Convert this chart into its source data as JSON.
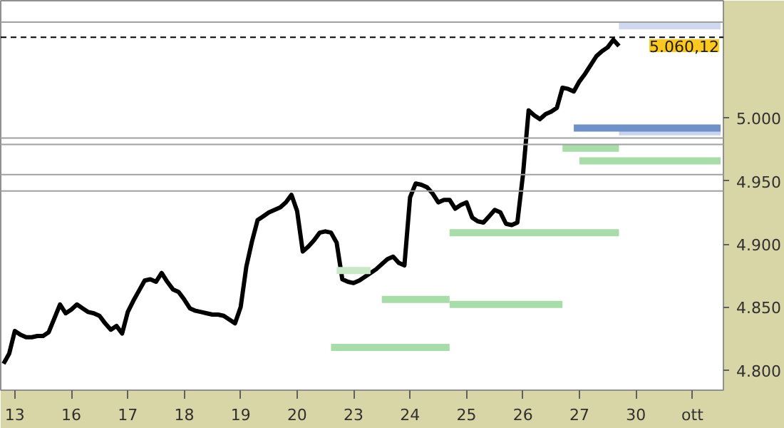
{
  "chart_data": {
    "type": "line",
    "grid": false,
    "marker": "none",
    "line_style": "solid",
    "categories": [
      null,
      null,
      "13",
      null,
      null,
      null,
      null,
      null,
      null,
      null,
      null,
      null,
      "16",
      null,
      null,
      null,
      null,
      null,
      null,
      null,
      null,
      null,
      "17",
      null,
      null,
      null,
      null,
      null,
      null,
      null,
      null,
      null,
      "18",
      null,
      null,
      null,
      null,
      null,
      null,
      null,
      null,
      null,
      "19",
      null,
      null,
      null,
      null,
      null,
      null,
      null,
      null,
      null,
      "20",
      null,
      null,
      null,
      null,
      null,
      null,
      null,
      null,
      null,
      "23",
      null,
      null,
      null,
      null,
      null,
      null,
      null,
      null,
      null,
      "24",
      null,
      null,
      null,
      null,
      null,
      null,
      null,
      null,
      null,
      "25",
      null,
      null,
      null,
      null,
      null,
      null,
      null,
      null,
      null,
      "26",
      null,
      null,
      null,
      null,
      null,
      null,
      null,
      null,
      null,
      "27",
      null,
      null,
      null,
      null,
      null,
      null,
      null,
      null,
      null,
      "30",
      null,
      null,
      null,
      null,
      null,
      null,
      null,
      null,
      null,
      "ott",
      null,
      null,
      null,
      null,
      null
    ],
    "ylim": [
      4784,
      5093
    ],
    "yticks": [
      {
        "value": 4800,
        "label": "4.800"
      },
      {
        "value": 4850,
        "label": "4.850"
      },
      {
        "value": 4900,
        "label": "4.900"
      },
      {
        "value": 4950,
        "label": "4.950"
      },
      {
        "value": 5000,
        "label": "5.000"
      }
    ],
    "series": [
      {
        "color": "#000000",
        "values": [
          4805,
          4813,
          4831,
          4828,
          4826,
          4826,
          4827,
          4827,
          4830,
          4841,
          4852,
          4845,
          4848,
          4852,
          4849,
          4846,
          4845,
          4843,
          4837,
          4832,
          4835,
          4829,
          4846,
          4855,
          4863,
          4871,
          4872,
          4870,
          4877,
          4870,
          4864,
          4862,
          4856,
          4849,
          4847,
          4846,
          4845,
          4844,
          4844,
          4843,
          4840,
          4837,
          4850,
          4882,
          4902,
          4919,
          4922,
          4925,
          4927,
          4929,
          4933,
          4939,
          4926,
          4894,
          4898,
          4903,
          4909,
          4910,
          4909,
          4901,
          4872,
          4870,
          4869,
          4871,
          4874,
          4877,
          4880,
          4884,
          4888,
          4890,
          4885,
          4883,
          4937,
          4948,
          4947,
          4945,
          4940,
          4933,
          4935,
          4935,
          4928,
          4931,
          4933,
          4921,
          4918,
          4917,
          4922,
          4927,
          4925,
          4916,
          4915,
          4917,
          4955,
          5006,
          5002,
          4999,
          5003,
          5005,
          5008,
          5024,
          5023,
          5021,
          5029,
          5035,
          5042,
          5049,
          5053,
          5056,
          5062,
          5057,
          null,
          null,
          null,
          null,
          null,
          null,
          null,
          null,
          null,
          null,
          null,
          null,
          null,
          null,
          null,
          null,
          null,
          null
        ]
      },
      {
        "color": "#a8dca8",
        "values": [
          null,
          null,
          null,
          null,
          null,
          null,
          null,
          null,
          null,
          null,
          null,
          null,
          null,
          null,
          null,
          null,
          null,
          null,
          null,
          null,
          null,
          null,
          null,
          null,
          null,
          null,
          null,
          null,
          null,
          null,
          null,
          null,
          null,
          null,
          null,
          null,
          null,
          null,
          null,
          null,
          null,
          null,
          null,
          null,
          null,
          null,
          null,
          null,
          null,
          null,
          null,
          null,
          null,
          null,
          null,
          null,
          null,
          null,
          4818,
          4818,
          4818,
          4818,
          4818,
          4818,
          4818,
          4818,
          4818,
          4818,
          4818,
          4818,
          4818,
          4818,
          4818,
          4818,
          4818,
          4818,
          4818,
          4818,
          4818,
          4818,
          null,
          null,
          null,
          null,
          null,
          null,
          null,
          null,
          null,
          null,
          null,
          null,
          null,
          null,
          null,
          null,
          null,
          null,
          null,
          null,
          null,
          null,
          null,
          null,
          null,
          null,
          null,
          null,
          null,
          null,
          null,
          null,
          null,
          null,
          null,
          null,
          null,
          null,
          null,
          null,
          null,
          null,
          null,
          null,
          null,
          null,
          null,
          null
        ]
      },
      {
        "color": "#a8dca8",
        "values": [
          null,
          null,
          null,
          null,
          null,
          null,
          null,
          null,
          null,
          null,
          null,
          null,
          null,
          null,
          null,
          null,
          null,
          null,
          null,
          null,
          null,
          null,
          null,
          null,
          null,
          null,
          null,
          null,
          null,
          null,
          null,
          null,
          null,
          null,
          null,
          null,
          null,
          null,
          null,
          null,
          null,
          null,
          null,
          null,
          null,
          null,
          null,
          null,
          null,
          null,
          null,
          null,
          null,
          null,
          null,
          null,
          null,
          null,
          null,
          null,
          null,
          null,
          null,
          null,
          null,
          null,
          null,
          4856,
          4856,
          4856,
          4856,
          4856,
          4856,
          4856,
          4856,
          4856,
          4856,
          4856,
          4856,
          4856,
          null,
          null,
          null,
          null,
          null,
          null,
          null,
          null,
          null,
          null,
          null,
          null,
          null,
          null,
          null,
          null,
          null,
          null,
          null,
          null,
          null,
          null,
          null,
          null,
          null,
          null,
          null,
          null,
          null,
          null,
          null,
          null,
          null,
          null,
          null,
          null,
          null,
          null,
          null,
          null,
          null,
          null,
          null,
          null,
          null,
          null,
          null,
          null
        ]
      },
      {
        "color": "#a8dca8",
        "values": [
          null,
          null,
          null,
          null,
          null,
          null,
          null,
          null,
          null,
          null,
          null,
          null,
          null,
          null,
          null,
          null,
          null,
          null,
          null,
          null,
          null,
          null,
          null,
          null,
          null,
          null,
          null,
          null,
          null,
          null,
          null,
          null,
          null,
          null,
          null,
          null,
          null,
          null,
          null,
          null,
          null,
          null,
          null,
          null,
          null,
          null,
          null,
          null,
          null,
          null,
          null,
          null,
          null,
          null,
          null,
          null,
          null,
          null,
          null,
          null,
          null,
          null,
          null,
          null,
          null,
          null,
          null,
          null,
          null,
          null,
          null,
          null,
          null,
          null,
          null,
          null,
          null,
          null,
          null,
          4852,
          4852,
          4852,
          4852,
          4852,
          4852,
          4852,
          4852,
          4852,
          4852,
          4852,
          4852,
          4852,
          4852,
          4852,
          4852,
          4852,
          4852,
          4852,
          4852,
          4852,
          null,
          null,
          null,
          null,
          null,
          null,
          null,
          null,
          null,
          null,
          null,
          null,
          null,
          null,
          null,
          null,
          null,
          null,
          null,
          null,
          null,
          null,
          null,
          null,
          null,
          null,
          null,
          null
        ]
      },
      {
        "color": "#a8dca8",
        "values": [
          null,
          null,
          null,
          null,
          null,
          null,
          null,
          null,
          null,
          null,
          null,
          null,
          null,
          null,
          null,
          null,
          null,
          null,
          null,
          null,
          null,
          null,
          null,
          null,
          null,
          null,
          null,
          null,
          null,
          null,
          null,
          null,
          null,
          null,
          null,
          null,
          null,
          null,
          null,
          null,
          null,
          null,
          null,
          null,
          null,
          null,
          null,
          null,
          null,
          null,
          null,
          null,
          null,
          null,
          null,
          null,
          null,
          null,
          null,
          null,
          null,
          null,
          null,
          null,
          null,
          null,
          null,
          null,
          null,
          null,
          null,
          null,
          null,
          null,
          null,
          null,
          null,
          null,
          null,
          4909,
          4909,
          4909,
          4909,
          4909,
          4909,
          4909,
          4909,
          4909,
          4909,
          4909,
          4909,
          4909,
          4909,
          4909,
          4909,
          4909,
          4909,
          4909,
          4909,
          4909,
          4909,
          4909,
          4909,
          4909,
          4909,
          4909,
          4909,
          4909,
          4909,
          4909,
          null,
          null,
          null,
          null,
          null,
          null,
          null,
          null,
          null,
          null,
          null,
          null,
          null,
          null,
          null,
          null,
          null,
          null
        ]
      },
      {
        "color": "#a8dca8",
        "values": [
          null,
          null,
          null,
          null,
          null,
          null,
          null,
          null,
          null,
          null,
          null,
          null,
          null,
          null,
          null,
          null,
          null,
          null,
          null,
          null,
          null,
          null,
          null,
          null,
          null,
          null,
          null,
          null,
          null,
          null,
          null,
          null,
          null,
          null,
          null,
          null,
          null,
          null,
          null,
          null,
          null,
          null,
          null,
          null,
          null,
          null,
          null,
          null,
          null,
          null,
          null,
          null,
          null,
          null,
          null,
          null,
          null,
          null,
          null,
          null,
          null,
          null,
          null,
          null,
          null,
          null,
          null,
          null,
          null,
          null,
          null,
          null,
          null,
          null,
          null,
          null,
          null,
          null,
          null,
          null,
          null,
          null,
          null,
          null,
          null,
          null,
          null,
          null,
          null,
          null,
          null,
          null,
          null,
          null,
          null,
          null,
          null,
          null,
          null,
          4976,
          4976,
          4976,
          4976,
          4976,
          4976,
          4976,
          4976,
          4976,
          4976,
          4976,
          null,
          null,
          null,
          null,
          null,
          null,
          null,
          null,
          null,
          null,
          null,
          null,
          null,
          null,
          null,
          null,
          null,
          null
        ]
      },
      {
        "color": "#a8dca8",
        "values": [
          null,
          null,
          null,
          null,
          null,
          null,
          null,
          null,
          null,
          null,
          null,
          null,
          null,
          null,
          null,
          null,
          null,
          null,
          null,
          null,
          null,
          null,
          null,
          null,
          null,
          null,
          null,
          null,
          null,
          null,
          null,
          null,
          null,
          null,
          null,
          null,
          null,
          null,
          null,
          null,
          null,
          null,
          null,
          null,
          null,
          null,
          null,
          null,
          null,
          null,
          null,
          null,
          null,
          null,
          null,
          null,
          null,
          null,
          null,
          null,
          null,
          null,
          null,
          null,
          null,
          null,
          null,
          null,
          null,
          null,
          null,
          null,
          null,
          null,
          null,
          null,
          null,
          null,
          null,
          null,
          null,
          null,
          null,
          null,
          null,
          null,
          null,
          null,
          null,
          null,
          null,
          null,
          null,
          null,
          null,
          null,
          null,
          null,
          null,
          null,
          null,
          null,
          4966,
          4966,
          4966,
          4966,
          4966,
          4966,
          4966,
          4966,
          4966,
          4966,
          4966,
          4966,
          4966,
          4966,
          4966,
          4966,
          4966,
          4966,
          4966,
          4966,
          4966,
          4966,
          4966,
          4966,
          4966,
          4966
        ]
      },
      {
        "color": "#c8e8c8",
        "values": [
          null,
          null,
          null,
          null,
          null,
          null,
          null,
          null,
          null,
          null,
          null,
          null,
          null,
          null,
          null,
          null,
          null,
          null,
          null,
          null,
          null,
          null,
          null,
          null,
          null,
          null,
          null,
          null,
          null,
          null,
          null,
          null,
          null,
          null,
          null,
          null,
          null,
          null,
          null,
          null,
          null,
          null,
          null,
          null,
          null,
          null,
          null,
          null,
          null,
          null,
          null,
          null,
          null,
          null,
          null,
          null,
          null,
          null,
          null,
          4879,
          4879,
          4879,
          4879,
          4879,
          4879,
          4879,
          null,
          null,
          null,
          null,
          null,
          null,
          null,
          null,
          null,
          null,
          null,
          null,
          null,
          null,
          null,
          null,
          null,
          null,
          null,
          null,
          null,
          null,
          null,
          null,
          null,
          null,
          null,
          null,
          null,
          null,
          null,
          null,
          null,
          null,
          null,
          null,
          null,
          null,
          null,
          null,
          null,
          null,
          null,
          null,
          null,
          null,
          null,
          null,
          null,
          null,
          null,
          null,
          null,
          null,
          null,
          null,
          null,
          null,
          null,
          null,
          null,
          null
        ]
      },
      {
        "color": "#c8d4ee",
        "values": [
          null,
          null,
          null,
          null,
          null,
          null,
          null,
          null,
          null,
          null,
          null,
          null,
          null,
          null,
          null,
          null,
          null,
          null,
          null,
          null,
          null,
          null,
          null,
          null,
          null,
          null,
          null,
          null,
          null,
          null,
          null,
          null,
          null,
          null,
          null,
          null,
          null,
          null,
          null,
          null,
          null,
          null,
          null,
          null,
          null,
          null,
          null,
          null,
          null,
          null,
          null,
          null,
          null,
          null,
          null,
          null,
          null,
          null,
          null,
          null,
          null,
          null,
          null,
          null,
          null,
          null,
          null,
          null,
          null,
          null,
          null,
          null,
          null,
          null,
          null,
          null,
          null,
          null,
          null,
          null,
          null,
          null,
          null,
          null,
          null,
          null,
          null,
          null,
          null,
          null,
          null,
          null,
          null,
          null,
          null,
          null,
          null,
          null,
          null,
          null,
          null,
          null,
          null,
          null,
          null,
          null,
          null,
          null,
          null,
          4989,
          4989,
          4989,
          4989,
          4989,
          4989,
          4989,
          4989,
          4989,
          4989,
          4989,
          4989,
          4989,
          4989,
          4989,
          4989,
          4989,
          4989,
          4989
        ]
      },
      {
        "color": "#7090c8",
        "values": [
          null,
          null,
          null,
          null,
          null,
          null,
          null,
          null,
          null,
          null,
          null,
          null,
          null,
          null,
          null,
          null,
          null,
          null,
          null,
          null,
          null,
          null,
          null,
          null,
          null,
          null,
          null,
          null,
          null,
          null,
          null,
          null,
          null,
          null,
          null,
          null,
          null,
          null,
          null,
          null,
          null,
          null,
          null,
          null,
          null,
          null,
          null,
          null,
          null,
          null,
          null,
          null,
          null,
          null,
          null,
          null,
          null,
          null,
          null,
          null,
          null,
          null,
          null,
          null,
          null,
          null,
          null,
          null,
          null,
          null,
          null,
          null,
          null,
          null,
          null,
          null,
          null,
          null,
          null,
          null,
          null,
          null,
          null,
          null,
          null,
          null,
          null,
          null,
          null,
          null,
          null,
          null,
          null,
          null,
          null,
          null,
          null,
          null,
          null,
          null,
          null,
          4992,
          4992,
          4992,
          4992,
          4992,
          4992,
          4992,
          4992,
          4992,
          4992,
          4992,
          4992,
          4992,
          4992,
          4992,
          4992,
          4992,
          4992,
          4992,
          4992,
          4992,
          4992,
          4992,
          4992,
          4992,
          4992,
          4992
        ]
      },
      {
        "color": "#d0d8f0",
        "values": [
          null,
          null,
          null,
          null,
          null,
          null,
          null,
          null,
          null,
          null,
          null,
          null,
          null,
          null,
          null,
          null,
          null,
          null,
          null,
          null,
          null,
          null,
          null,
          null,
          null,
          null,
          null,
          null,
          null,
          null,
          null,
          null,
          null,
          null,
          null,
          null,
          null,
          null,
          null,
          null,
          null,
          null,
          null,
          null,
          null,
          null,
          null,
          null,
          null,
          null,
          null,
          null,
          null,
          null,
          null,
          null,
          null,
          null,
          null,
          null,
          null,
          null,
          null,
          null,
          null,
          null,
          null,
          null,
          null,
          null,
          null,
          null,
          null,
          null,
          null,
          null,
          null,
          null,
          null,
          null,
          null,
          null,
          null,
          null,
          null,
          null,
          null,
          null,
          null,
          null,
          null,
          null,
          null,
          null,
          null,
          null,
          null,
          null,
          null,
          null,
          null,
          null,
          null,
          null,
          null,
          null,
          null,
          null,
          null,
          5073,
          5073,
          5073,
          5073,
          5073,
          5073,
          5073,
          5073,
          5073,
          5073,
          5073,
          5073,
          5073,
          5073,
          5073,
          5073,
          5073,
          5073,
          5073
        ]
      }
    ],
    "ref_lines": [
      {
        "axis": "y",
        "value": 5076,
        "color": "#a0a0a0"
      },
      {
        "axis": "y",
        "value": 4984,
        "color": "#a0a0a0"
      },
      {
        "axis": "y",
        "value": 4979,
        "color": "#a0a0a0"
      },
      {
        "axis": "y",
        "value": 4955,
        "color": "#a0a0a0"
      },
      {
        "axis": "y",
        "value": 4942,
        "color": "#a0a0a0"
      },
      {
        "axis": "y",
        "value": 5064,
        "color": "#000000",
        "line_style": "dashed"
      }
    ],
    "annotations": [
      {
        "text": "5.060,12",
        "y": 5060.12
      }
    ]
  }
}
